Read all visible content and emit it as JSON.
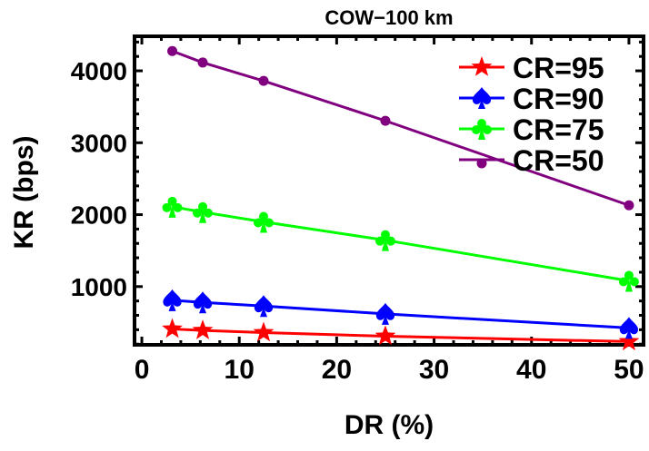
{
  "chart_data": {
    "type": "line",
    "title": "COW−100 km",
    "xlabel": "DR (%)",
    "ylabel": "KR (bps)",
    "xlim": [
      -0.75,
      51.5
    ],
    "ylim": [
      190,
      4480
    ],
    "xticks": [
      0,
      10,
      20,
      30,
      40,
      50
    ],
    "yticks": [
      1000,
      2000,
      3000,
      4000
    ],
    "grid": false,
    "legend_position": "top-right",
    "x": [
      3.125,
      6.25,
      12.5,
      25,
      50
    ],
    "series": [
      {
        "name": "CR=95",
        "color": "#ff0000",
        "marker": "star",
        "values": [
          410,
          390,
          360,
          310,
          235
        ]
      },
      {
        "name": "CR=90",
        "color": "#0000ff",
        "marker": "spade",
        "values": [
          810,
          780,
          730,
          620,
          425
        ]
      },
      {
        "name": "CR=75",
        "color": "#00ff00",
        "marker": "club",
        "values": [
          2110,
          2035,
          1900,
          1645,
          1080
        ]
      },
      {
        "name": "CR=50",
        "color": "#800080",
        "marker": "circle",
        "values": [
          4275,
          4115,
          3860,
          3305,
          2130
        ]
      }
    ]
  }
}
